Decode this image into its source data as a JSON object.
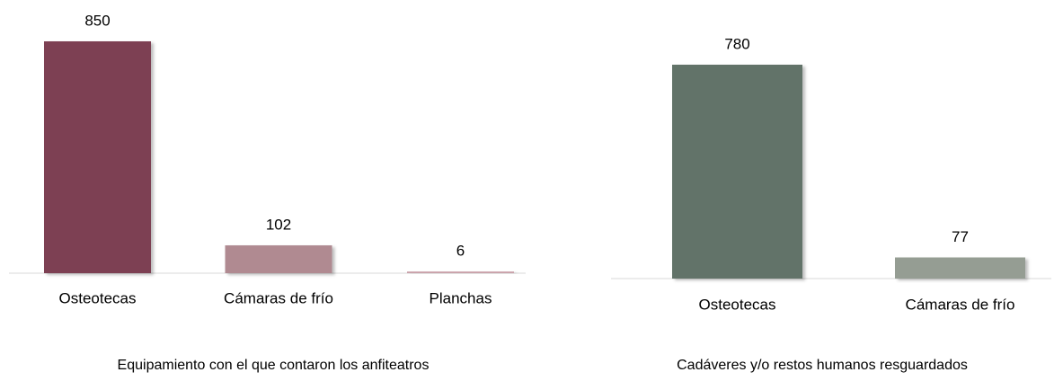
{
  "chart_data": [
    {
      "type": "bar",
      "title": "Equipamiento con el que contaron los anfiteatros",
      "categories": [
        "Osteotecas",
        "Cámaras de frío",
        "Planchas"
      ],
      "values": [
        850,
        102,
        6
      ],
      "colors": [
        "#7d4052",
        "#b08a91",
        "#c9a0a8"
      ]
    },
    {
      "type": "bar",
      "title": "Cadáveres y/o restos humanos resguardados",
      "categories": [
        "Osteotecas",
        "Cámaras de frío"
      ],
      "values": [
        780,
        77
      ],
      "colors": [
        "#627369",
        "#959d93"
      ]
    }
  ]
}
